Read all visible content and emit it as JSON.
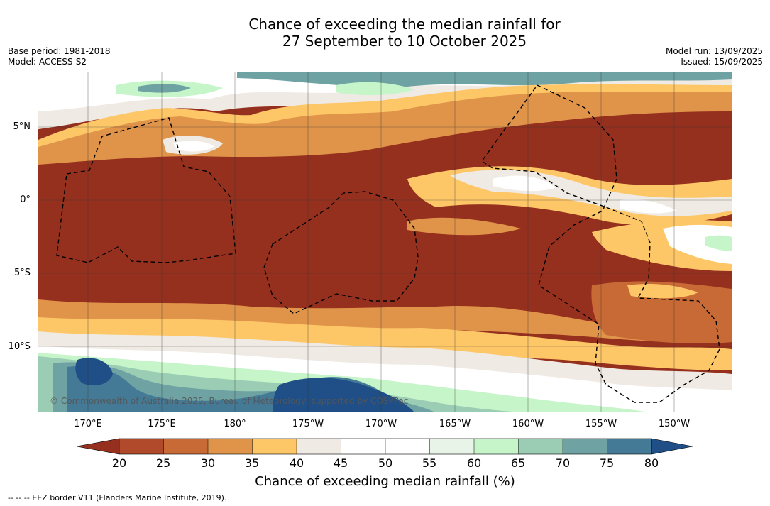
{
  "title": {
    "line1": "Chance of exceeding the median rainfall for",
    "line2": "27 September to 10 October 2025"
  },
  "meta_left": {
    "base_period": "Base period: 1981-2018",
    "model": "Model: ACCESS-S2"
  },
  "meta_right": {
    "model_run": "Model run: 13/09/2025",
    "issued": "Issued: 15/09/2025"
  },
  "map": {
    "lat_labels": [
      "5°N",
      "0°",
      "5°S",
      "10°S"
    ],
    "lon_labels": [
      "170°E",
      "175°E",
      "180°",
      "175°W",
      "170°W",
      "165°W",
      "160°W",
      "155°W",
      "150°W"
    ],
    "copyright": "© Commonwealth of Australia 2025, Bureau of Meteorology, supported by COSPPac"
  },
  "colorbar": {
    "ticks": [
      "20",
      "25",
      "30",
      "35",
      "40",
      "45",
      "50",
      "55",
      "60",
      "65",
      "70",
      "75",
      "80"
    ],
    "colors": [
      "#96301e",
      "#b04a2a",
      "#c86a35",
      "#e0944a",
      "#fdc768",
      "#efeae3",
      "#ffffff",
      "#ffffff",
      "#e8f4e8",
      "#c5f5c8",
      "#9bcdb4",
      "#6fa3a3",
      "#457a96",
      "#1f4f86"
    ],
    "label": "Chance of exceeding median rainfall (%)"
  },
  "legend_note": "--  --  -- EEZ border V11 (Flanders Marine Institute, 2019)."
}
